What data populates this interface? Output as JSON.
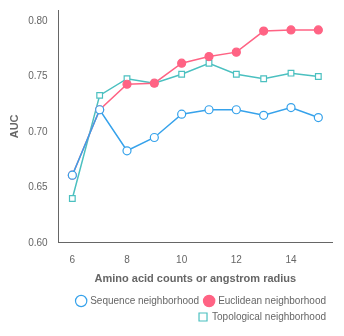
{
  "chart_data": {
    "type": "line",
    "x": [
      6,
      7,
      8,
      9,
      10,
      11,
      12,
      13,
      14,
      15
    ],
    "series": [
      {
        "name": "Sequence neighborhood",
        "marker": "open_circle",
        "values": [
          0.661,
          0.72,
          0.683,
          0.695,
          0.716,
          0.72,
          0.72,
          0.715,
          0.722,
          0.713
        ]
      },
      {
        "name": "Euclidean neighborhood",
        "marker": "filled_circle",
        "values": [
          0.661,
          0.72,
          0.743,
          0.744,
          0.762,
          0.768,
          0.772,
          0.791,
          0.792,
          0.792
        ]
      },
      {
        "name": "Topological neighborhood",
        "marker": "open_square",
        "values": [
          0.64,
          0.733,
          0.748,
          0.744,
          0.752,
          0.762,
          0.752,
          0.748,
          0.753,
          0.75
        ]
      }
    ],
    "xlabel": "Amino acid counts or angstrom radius",
    "ylabel": "AUC",
    "xlim": [
      5.5,
      15.5
    ],
    "ylim": [
      0.6,
      0.81
    ],
    "xticks": [
      6,
      8,
      10,
      12,
      14
    ],
    "yticks": [
      {
        "value": 0.6,
        "label": "0.60"
      },
      {
        "value": 0.65,
        "label": "0.65"
      },
      {
        "value": 0.7,
        "label": "0.70"
      },
      {
        "value": 0.75,
        "label": "0.75"
      },
      {
        "value": 0.8,
        "label": "0.80"
      }
    ],
    "grid": false,
    "legend": "lower right"
  }
}
